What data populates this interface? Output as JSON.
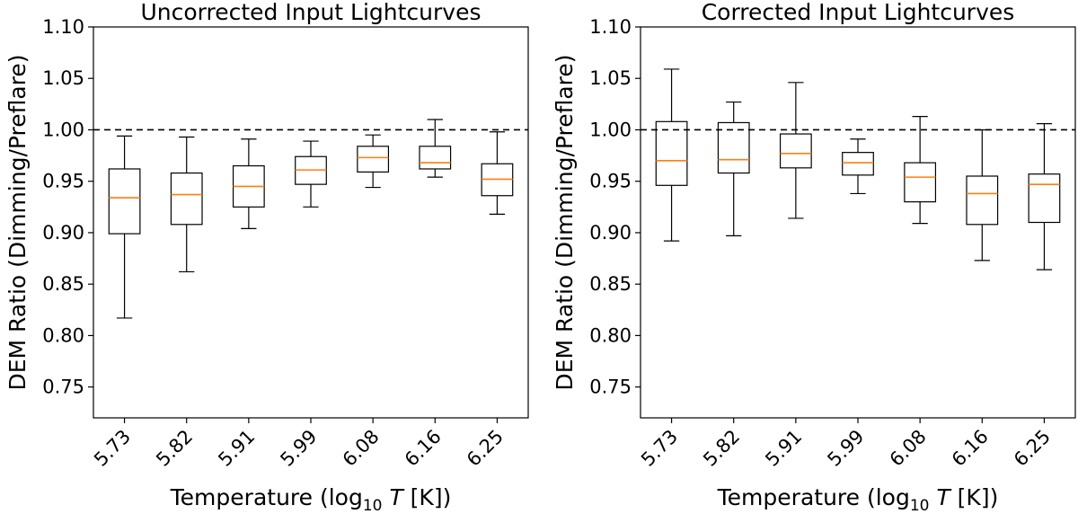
{
  "chart_data": [
    {
      "type": "box",
      "title": "Uncorrected Input Lightcurves",
      "xlabel_prefix": "Temperature (log",
      "xlabel_sub": "10",
      "xlabel_var": "T",
      "xlabel_suffix": " [K])",
      "ylabel": "DEM Ratio (Dimming/Preflare)",
      "ylim": [
        0.72,
        1.1
      ],
      "yticks": [
        "0.75",
        "0.80",
        "0.85",
        "0.90",
        "0.95",
        "1.00",
        "1.05",
        "1.10"
      ],
      "reference_line": 1.0,
      "grid": false,
      "categories": [
        "5.73",
        "5.82",
        "5.91",
        "5.99",
        "6.08",
        "6.16",
        "6.25"
      ],
      "boxes": [
        {
          "whislo": 0.817,
          "q1": 0.899,
          "med": 0.934,
          "q3": 0.962,
          "whishi": 0.994
        },
        {
          "whislo": 0.862,
          "q1": 0.908,
          "med": 0.937,
          "q3": 0.958,
          "whishi": 0.993
        },
        {
          "whislo": 0.904,
          "q1": 0.925,
          "med": 0.945,
          "q3": 0.965,
          "whishi": 0.991
        },
        {
          "whislo": 0.925,
          "q1": 0.947,
          "med": 0.961,
          "q3": 0.974,
          "whishi": 0.989
        },
        {
          "whislo": 0.944,
          "q1": 0.959,
          "med": 0.973,
          "q3": 0.984,
          "whishi": 0.995
        },
        {
          "whislo": 0.954,
          "q1": 0.962,
          "med": 0.968,
          "q3": 0.984,
          "whishi": 1.01
        },
        {
          "whislo": 0.918,
          "q1": 0.936,
          "med": 0.952,
          "q3": 0.967,
          "whishi": 0.998
        }
      ]
    },
    {
      "type": "box",
      "title": "Corrected Input Lightcurves",
      "xlabel_prefix": "Temperature (log",
      "xlabel_sub": "10",
      "xlabel_var": "T",
      "xlabel_suffix": " [K])",
      "ylabel": "DEM Ratio (Dimming/Preflare)",
      "ylim": [
        0.72,
        1.1
      ],
      "yticks": [
        "0.75",
        "0.80",
        "0.85",
        "0.90",
        "0.95",
        "1.00",
        "1.05",
        "1.10"
      ],
      "reference_line": 1.0,
      "grid": false,
      "categories": [
        "5.73",
        "5.82",
        "5.91",
        "5.99",
        "6.08",
        "6.16",
        "6.25"
      ],
      "boxes": [
        {
          "whislo": 0.892,
          "q1": 0.946,
          "med": 0.97,
          "q3": 1.008,
          "whishi": 1.059
        },
        {
          "whislo": 0.897,
          "q1": 0.958,
          "med": 0.971,
          "q3": 1.007,
          "whishi": 1.027
        },
        {
          "whislo": 0.914,
          "q1": 0.963,
          "med": 0.977,
          "q3": 0.996,
          "whishi": 1.046
        },
        {
          "whislo": 0.938,
          "q1": 0.956,
          "med": 0.968,
          "q3": 0.978,
          "whishi": 0.991
        },
        {
          "whislo": 0.909,
          "q1": 0.93,
          "med": 0.954,
          "q3": 0.968,
          "whishi": 1.013
        },
        {
          "whislo": 0.873,
          "q1": 0.908,
          "med": 0.938,
          "q3": 0.955,
          "whishi": 1.0
        },
        {
          "whislo": 0.864,
          "q1": 0.91,
          "med": 0.947,
          "q3": 0.957,
          "whishi": 1.006
        }
      ]
    }
  ],
  "colors": {
    "box": "#000000",
    "median": "#ff7f0e",
    "reference": "#000000"
  }
}
